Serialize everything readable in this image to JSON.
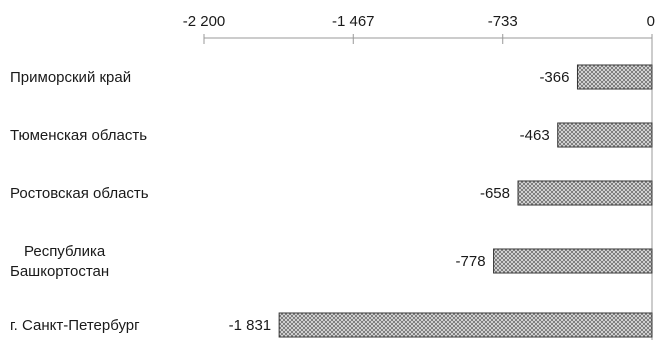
{
  "chart_data": {
    "type": "bar",
    "orientation": "horizontal",
    "categories": [
      "Приморский край",
      "Тюменская область",
      "Ростовская область",
      "Республика Башкортостан",
      "г. Санкт-Петербург"
    ],
    "category_label_lines": [
      [
        "Приморский край"
      ],
      [
        "Тюменская область"
      ],
      [
        "Ростовская область"
      ],
      [
        "Республика",
        "Башкортостан"
      ],
      [
        "г. Санкт-Петербург"
      ]
    ],
    "values": [
      -366,
      -463,
      -658,
      -778,
      -1831
    ],
    "value_labels": [
      "-366",
      "-463",
      "-658",
      "-778",
      "-1 831"
    ],
    "xlim": [
      -2200,
      0
    ],
    "ticks": [
      -2200,
      -1467,
      -733,
      0
    ],
    "tick_labels": [
      "-2 200",
      "-1 467",
      "-733",
      "0"
    ],
    "axis_position": "top",
    "grid": false,
    "legend": "none",
    "bar_pattern": "crosshatch",
    "colors": {
      "bar_fill": "#d9d9d9",
      "bar_stroke": "#333333",
      "axis": "#999999"
    }
  }
}
